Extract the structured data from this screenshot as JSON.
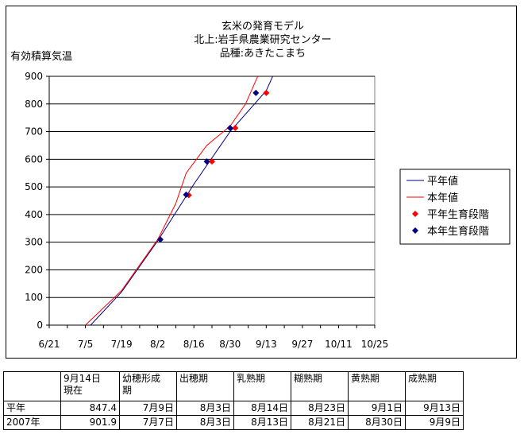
{
  "chart_data": {
    "type": "line",
    "title": [
      "玄米の発育モデル",
      "北上:岩手県農業研究センター",
      "品種:あきたこまち"
    ],
    "ylabel": "有効積算気温",
    "xlabel": "",
    "ylim": [
      0,
      900
    ],
    "yticks": [
      0,
      100,
      200,
      300,
      400,
      500,
      600,
      700,
      800,
      900
    ],
    "xlim": [
      "2007-06-21",
      "2007-10-25"
    ],
    "xticks": [
      "2007-06-21",
      "2007-07-05",
      "2007-07-19",
      "2007-08-02",
      "2007-08-16",
      "2007-08-30",
      "2007-09-13",
      "2007-09-27",
      "2007-10-11",
      "2007-10-25"
    ],
    "xtick_labels": [
      "6/21",
      "7/5",
      "7/19",
      "8/2",
      "8/16",
      "8/30",
      "9/13",
      "9/27",
      "10/11",
      "10/25"
    ],
    "grid": "horizontal",
    "legend_position": "right",
    "series": [
      {
        "name": "平年値",
        "type": "line",
        "color": "#000080",
        "points": [
          {
            "x": "2007-07-07",
            "y": 0
          },
          {
            "x": "2007-07-19",
            "y": 120
          },
          {
            "x": "2007-08-02",
            "y": 305
          },
          {
            "x": "2007-08-16",
            "y": 510
          },
          {
            "x": "2007-08-30",
            "y": 700
          },
          {
            "x": "2007-09-13",
            "y": 848
          },
          {
            "x": "2007-09-16",
            "y": 910
          }
        ]
      },
      {
        "name": "本年値",
        "type": "line",
        "color": "#ff0000",
        "points": [
          {
            "x": "2007-07-05",
            "y": 0
          },
          {
            "x": "2007-07-19",
            "y": 125
          },
          {
            "x": "2007-08-02",
            "y": 310
          },
          {
            "x": "2007-08-09",
            "y": 440
          },
          {
            "x": "2007-08-13",
            "y": 550
          },
          {
            "x": "2007-08-21",
            "y": 650
          },
          {
            "x": "2007-08-30",
            "y": 720
          },
          {
            "x": "2007-09-05",
            "y": 800
          },
          {
            "x": "2007-09-09",
            "y": 885
          },
          {
            "x": "2007-09-10",
            "y": 905
          }
        ]
      },
      {
        "name": "平年生育段階",
        "type": "scatter",
        "color": "#ff0000",
        "marker": "diamond",
        "points": [
          {
            "x": "2007-08-03",
            "y": 310
          },
          {
            "x": "2007-08-14",
            "y": 470
          },
          {
            "x": "2007-08-23",
            "y": 592
          },
          {
            "x": "2007-09-01",
            "y": 713
          },
          {
            "x": "2007-09-13",
            "y": 840
          }
        ]
      },
      {
        "name": "本年生育段階",
        "type": "scatter",
        "color": "#000080",
        "marker": "diamond",
        "points": [
          {
            "x": "2007-08-03",
            "y": 310
          },
          {
            "x": "2007-08-13",
            "y": 472
          },
          {
            "x": "2007-08-21",
            "y": 592
          },
          {
            "x": "2007-08-30",
            "y": 713
          },
          {
            "x": "2007-09-09",
            "y": 840
          }
        ]
      }
    ]
  },
  "table": {
    "header": [
      "",
      "9月14日\n現在",
      "幼穂形成\n期",
      "出穂期",
      "乳熟期",
      "糊熟期",
      "黄熟期",
      "成熟期"
    ],
    "rows": [
      [
        "平年",
        "847.4",
        "7月9日",
        "8月3日",
        "8月14日",
        "8月23日",
        "9月1日",
        "9月13日"
      ],
      [
        "2007年",
        "901.9",
        "7月7日",
        "8月3日",
        "8月13日",
        "8月21日",
        "8月30日",
        "9月9日"
      ]
    ]
  }
}
